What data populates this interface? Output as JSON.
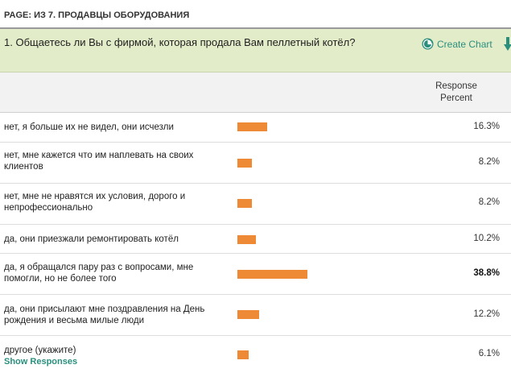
{
  "page": {
    "title": "PAGE: ИЗ 7. ПРОДАВЦЫ ОБОРУДОВАНИЯ"
  },
  "question": {
    "text": "1. Общаетесь ли Вы с фирмой, которая продала Вам пеллетный котёл?",
    "create_chart_label": "Create Chart",
    "create_chart_icon": "pie-chart-icon",
    "download_icon": "download-arrow-icon"
  },
  "table": {
    "column_header": "Response Percent",
    "rows": [
      {
        "label": "нет, я больше их не видел, они исчезли",
        "percent": "16.3%",
        "value": 16.3
      },
      {
        "label": "нет, мне кажется что им наплевать на своих клиентов",
        "percent": "8.2%",
        "value": 8.2
      },
      {
        "label": "нет, мне не нравятся их условия, дорого и непрофессионально",
        "percent": "8.2%",
        "value": 8.2
      },
      {
        "label": "да, они приезжали ремонтировать котёл",
        "percent": "10.2%",
        "value": 10.2
      },
      {
        "label": "да, я обращался пару раз с вопросами, мне помогли, но не более того",
        "percent": "38.8%",
        "value": 38.8
      },
      {
        "label": "да, они присылают мне поздравления на День рождения и весьма милые люди",
        "percent": "12.2%",
        "value": 12.2
      },
      {
        "label": "другое (укажите)",
        "percent": "6.1%",
        "value": 6.1,
        "show_responses": "Show Responses"
      }
    ]
  },
  "colors": {
    "bar": "#ee8a35",
    "accent": "#2a8f7d",
    "question_bg": "#e3ecc9"
  }
}
